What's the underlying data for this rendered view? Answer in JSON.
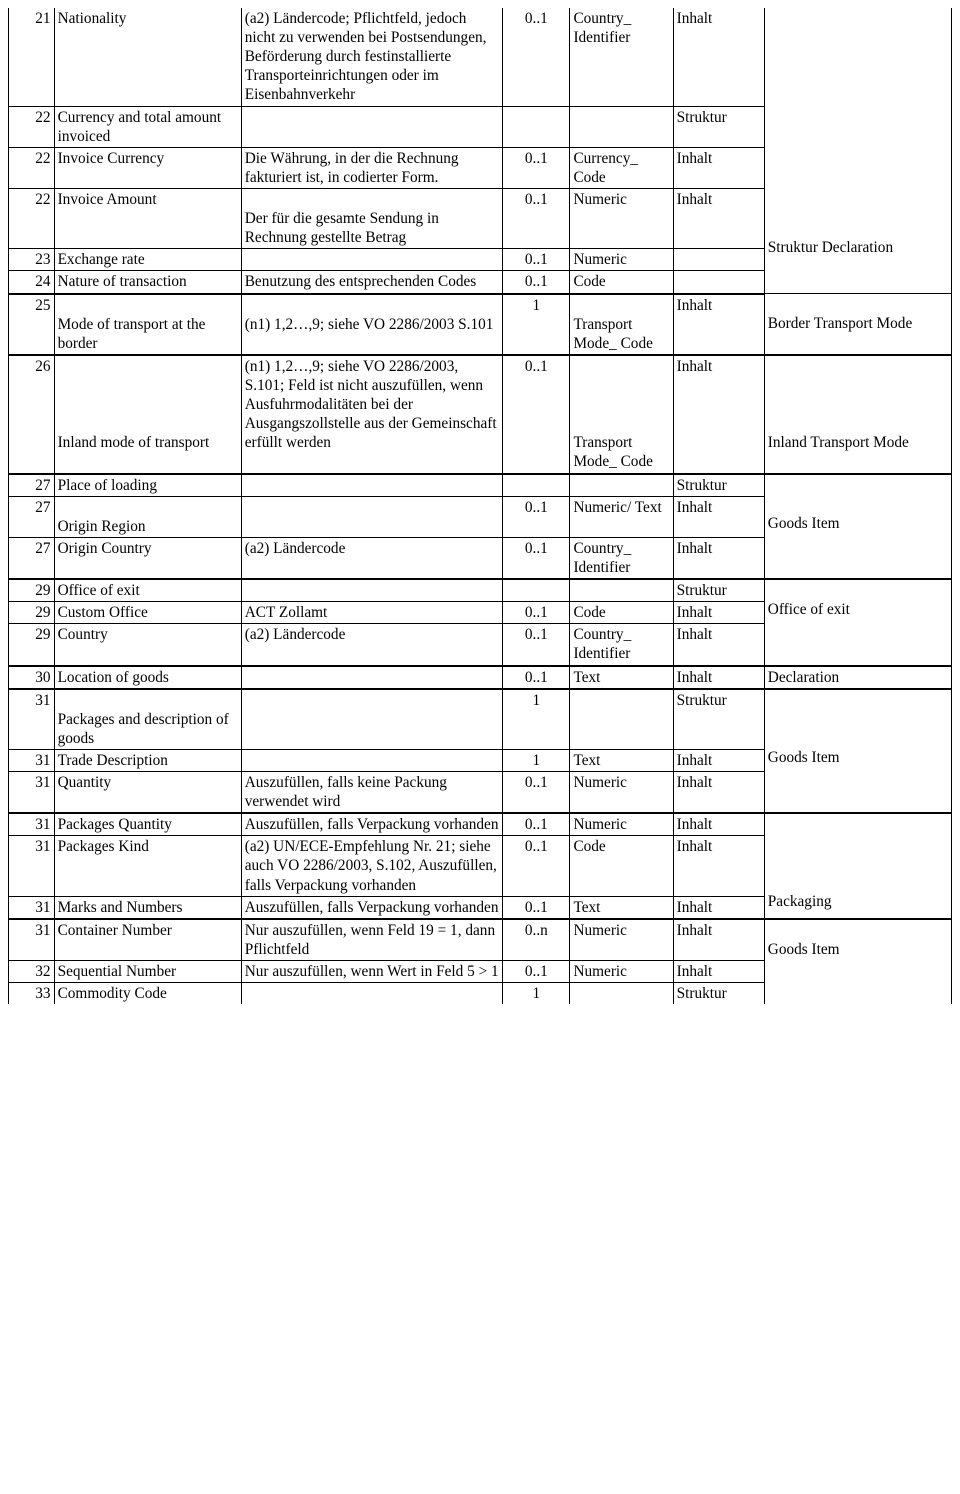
{
  "rows": [
    {
      "n": "21",
      "name": "Nationality",
      "desc": "(a2) Ländercode; Pflichtfeld, jedoch nicht zu verwenden bei Postsendungen, Beförderung durch festinstallierte Transporteinrichtungen oder im Eisenbahnverkehr",
      "card": "0..1",
      "type": "Country_ Identifier",
      "role": "Inhalt"
    },
    {
      "n": "22",
      "name": "Currency and total amount invoiced",
      "desc": "",
      "card": "",
      "type": "",
      "role": "Struktur"
    },
    {
      "n": "22",
      "name": "Invoice Currency",
      "desc": "Die Währung, in der die Rechnung fakturiert ist, in codierter Form.",
      "card": "0..1",
      "type": "Currency_ Code",
      "role": "Inhalt",
      "grp": "Struktur Declaration"
    },
    {
      "n": "22",
      "name": "Invoice Amount",
      "desc": "Der für die gesamte Sendung in Rechnung gestellte Betrag",
      "card": "0..1",
      "type": "Numeric",
      "role": "Inhalt"
    },
    {
      "n": "23",
      "name": "Exchange rate",
      "desc": "",
      "card": "0..1",
      "type": "Numeric",
      "role": ""
    },
    {
      "n": "24",
      "name": "Nature of transaction",
      "desc": "Benutzung des entsprechenden Codes",
      "card": "0..1",
      "type": "Code",
      "role": ""
    },
    {
      "n": "25",
      "name": "Mode of transport at the border",
      "desc": "(n1) 1,2…,9; siehe VO 2286/2003 S.101",
      "card": "1",
      "type": "Transport Mode_ Code",
      "role": "Inhalt",
      "grp": "Border Transport Mode"
    },
    {
      "n": "26",
      "name": "Inland mode of transport",
      "desc": "(n1) 1,2…,9; siehe VO 2286/2003, S.101; Feld ist nicht auszufüllen, wenn Ausfuhrmodalitäten bei der Ausgangszollstelle aus der Gemeinschaft erfüllt werden",
      "card": "0..1",
      "type": "Transport Mode_ Code",
      "role": "Inhalt",
      "grp": "Inland Transport Mode"
    },
    {
      "n": "27",
      "name": "Place of loading",
      "desc": "",
      "card": "",
      "type": "",
      "role": "Struktur"
    },
    {
      "n": "27",
      "name": "Origin Region",
      "desc": "",
      "card": "0..1",
      "type": "Numeric/ Text",
      "role": "Inhalt",
      "grp": "Goods Item"
    },
    {
      "n": "27",
      "name": "Origin Country",
      "desc": "(a2) Ländercode",
      "card": "0..1",
      "type": "Country_ Identifier",
      "role": "Inhalt"
    },
    {
      "n": "29",
      "name": "Office of exit",
      "desc": "",
      "card": "",
      "type": "",
      "role": "Struktur"
    },
    {
      "n": "29",
      "name": "Custom Office",
      "desc": "ACT Zollamt",
      "card": "0..1",
      "type": "Code",
      "role": "Inhalt",
      "grp": "Office of exit"
    },
    {
      "n": "29",
      "name": "Country",
      "desc": "(a2) Ländercode",
      "card": "0..1",
      "type": "Country_ Identifier",
      "role": "Inhalt"
    },
    {
      "n": "30",
      "name": "Location of goods",
      "desc": "",
      "card": "0..1",
      "type": "Text",
      "role": "Inhalt",
      "grp": "Declaration"
    },
    {
      "n": "31",
      "name": "Packages and description of goods",
      "desc": "",
      "card": "1",
      "type": "",
      "role": "Struktur",
      "grp": "Goods Item"
    },
    {
      "n": "31",
      "name": "Trade Description",
      "desc": "",
      "card": "1",
      "type": "Text",
      "role": "Inhalt"
    },
    {
      "n": "31",
      "name": "Quantity",
      "desc": "Auszufüllen, falls keine Packung verwendet wird",
      "card": "0..1",
      "type": "Numeric",
      "role": "Inhalt"
    },
    {
      "n": "31",
      "name": "Packages Quantity",
      "desc": "Auszufüllen, falls Verpackung vorhanden",
      "card": "0..1",
      "type": "Numeric",
      "role": "Inhalt",
      "grp": "Packaging"
    },
    {
      "n": "31",
      "name": "Packages Kind",
      "desc": "(a2) UN/ECE-Empfehlung Nr. 21; siehe auch VO 2286/2003, S.102, Auszufüllen, falls Verpackung vorhanden",
      "card": "0..1",
      "type": "Code",
      "role": "Inhalt"
    },
    {
      "n": "31",
      "name": "Marks and Numbers",
      "desc": "Auszufüllen, falls Verpackung vorhanden",
      "card": "0..1",
      "type": "Text",
      "role": "Inhalt"
    },
    {
      "n": "31",
      "name": "Container Number",
      "desc": "Nur auszufüllen, wenn Feld 19 = 1, dann Pflichtfeld",
      "card": "0..n",
      "type": "Numeric",
      "role": "Inhalt",
      "grp": "Goods Item"
    },
    {
      "n": "32",
      "name": "Sequential  Number",
      "desc": "Nur auszufüllen, wenn Wert in Feld 5 > 1",
      "card": "0..1",
      "type": "Numeric",
      "role": "Inhalt"
    },
    {
      "n": "33",
      "name": "Commodity Code",
      "desc": "",
      "card": "1",
      "type": "",
      "role": "Struktur"
    }
  ]
}
